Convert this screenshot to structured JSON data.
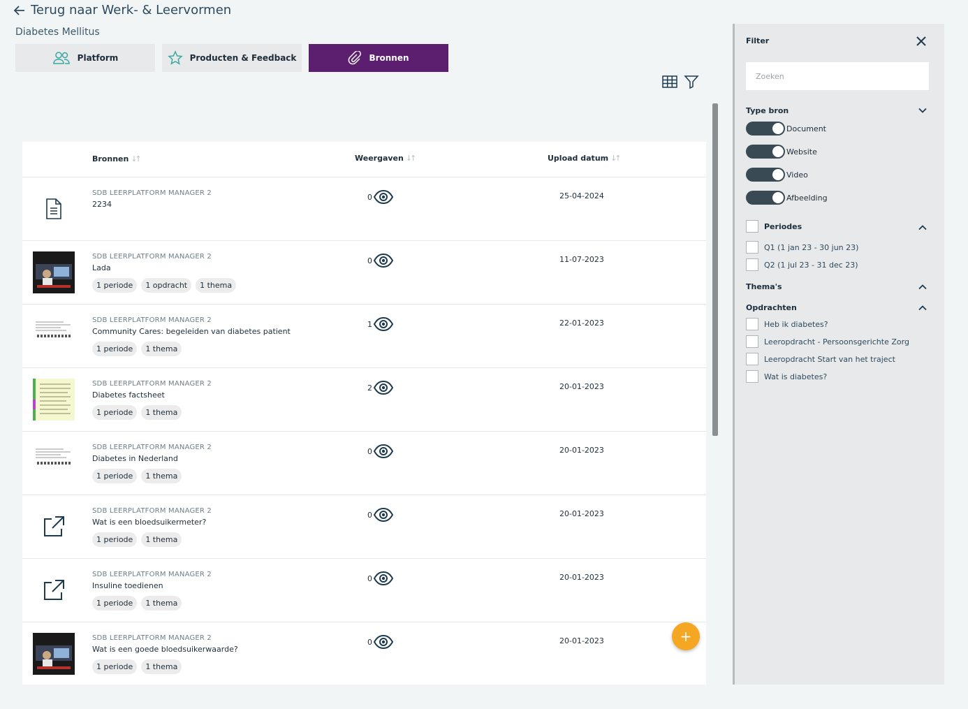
{
  "header": {
    "back_label": "Terug naar Werk- & Leervormen",
    "subtitle": "Diabetes Mellitus"
  },
  "tabs": [
    {
      "label": "Platform",
      "icon": "users-icon"
    },
    {
      "label": "Producten & Feedback",
      "icon": "star-icon"
    },
    {
      "label": "Bronnen",
      "icon": "paperclip-icon",
      "active": true
    }
  ],
  "table": {
    "columns": [
      "Bronnen",
      "Weergaven",
      "Upload datum"
    ],
    "rows": [
      {
        "author": "SDB LEERPLATFORM MANAGER 2",
        "title": "2234",
        "views": "0",
        "date": "25-04-2024",
        "chips": [],
        "thumb": "document-icon"
      },
      {
        "author": "SDB LEERPLATFORM MANAGER 2",
        "title": "Lada",
        "views": "0",
        "date": "11-07-2023",
        "chips": [
          "1 periode",
          "1 opdracht",
          "1 thema"
        ],
        "thumb": "video-thumbnail"
      },
      {
        "author": "SDB LEERPLATFORM MANAGER 2",
        "title": "Community Cares: begeleiden van diabetes patient",
        "views": "1",
        "date": "22-01-2023",
        "chips": [
          "1 periode",
          "1 thema"
        ],
        "thumb": "document-thumbnail"
      },
      {
        "author": "SDB LEERPLATFORM MANAGER 2",
        "title": "Diabetes factsheet",
        "views": "2",
        "date": "20-01-2023",
        "chips": [
          "1 periode",
          "1 thema"
        ],
        "thumb": "factsheet-thumbnail"
      },
      {
        "author": "SDB LEERPLATFORM MANAGER 2",
        "title": "Diabetes in Nederland",
        "views": "0",
        "date": "20-01-2023",
        "chips": [
          "1 periode",
          "1 thema"
        ],
        "thumb": "document-thumbnail"
      },
      {
        "author": "SDB LEERPLATFORM MANAGER 2",
        "title": "Wat is een bloedsuikermeter?",
        "views": "0",
        "date": "20-01-2023",
        "chips": [
          "1 periode",
          "1 thema"
        ],
        "thumb": "external-link-icon"
      },
      {
        "author": "SDB LEERPLATFORM MANAGER 2",
        "title": "Insuline toedienen",
        "views": "0",
        "date": "20-01-2023",
        "chips": [
          "1 periode",
          "1 thema"
        ],
        "thumb": "external-link-icon"
      },
      {
        "author": "SDB LEERPLATFORM MANAGER 2",
        "title": "Wat is een goede bloedsuikerwaarde?",
        "views": "0",
        "date": "20-01-2023",
        "chips": [
          "1 periode",
          "1 thema"
        ],
        "thumb": "video-thumbnail"
      }
    ]
  },
  "fab_label": "+",
  "filter": {
    "title": "Filter",
    "search_placeholder": "Zoeken",
    "type_bron": {
      "label": "Type bron",
      "toggles": [
        "Document",
        "Website",
        "Video",
        "Afbeelding"
      ]
    },
    "periodes": {
      "label": "Periodes",
      "options": [
        "Q1 (1 jan 23 - 30 jun 23)",
        "Q2 (1 jul 23 - 31 dec 23)"
      ]
    },
    "themas": {
      "label": "Thema's"
    },
    "opdrachten": {
      "label": "Opdrachten",
      "options": [
        "Heb ik diabetes?",
        "Leeropdracht - Persoonsgerichte Zorg",
        "Leeropdracht Start van het traject",
        "Wat is diabetes?"
      ]
    }
  },
  "colors": {
    "accent": "#5c1e6e",
    "fab": "#f5a623",
    "toggle": "#3a4a55"
  }
}
